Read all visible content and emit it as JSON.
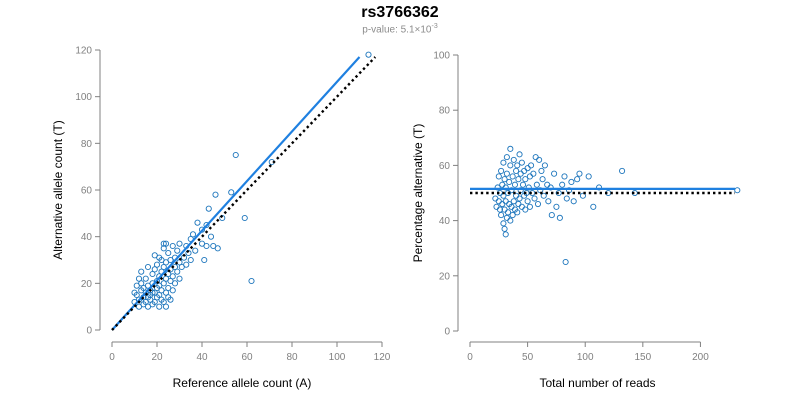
{
  "title": "rs3766362",
  "subtitle": {
    "prefix": "p-value: 5.1×10",
    "exponent": "-3"
  },
  "colors": {
    "points": "#1c75bc",
    "fit_line": "#1f80e0",
    "reference_line": "#000000",
    "axis": "#808080"
  },
  "chart_data": [
    {
      "type": "scatter",
      "xlabel": "Reference allele count (A)",
      "ylabel": "Alternative allele count (T)",
      "xlim": [
        0,
        120
      ],
      "ylim": [
        0,
        120
      ],
      "xticks": [
        0,
        20,
        40,
        60,
        80,
        100,
        120
      ],
      "yticks": [
        0,
        20,
        40,
        60,
        80,
        100,
        120
      ],
      "grid": false,
      "series": [
        {
          "name": "samples",
          "points": [
            [
              10,
              12
            ],
            [
              11,
              15
            ],
            [
              12,
              10
            ],
            [
              12,
              13
            ],
            [
              13,
              17
            ],
            [
              13,
              20
            ],
            [
              14,
              11
            ],
            [
              14,
              14
            ],
            [
              14,
              18
            ],
            [
              15,
              12
            ],
            [
              15,
              16
            ],
            [
              15,
              22
            ],
            [
              16,
              10
            ],
            [
              16,
              14
            ],
            [
              16,
              19
            ],
            [
              17,
              13
            ],
            [
              17,
              15
            ],
            [
              17,
              17
            ],
            [
              18,
              11
            ],
            [
              18,
              20
            ],
            [
              18,
              24
            ],
            [
              19,
              12
            ],
            [
              19,
              16
            ],
            [
              19,
              26
            ],
            [
              20,
              14
            ],
            [
              20,
              18
            ],
            [
              20,
              21
            ],
            [
              20,
              28
            ],
            [
              21,
              10
            ],
            [
              21,
              15
            ],
            [
              21,
              19
            ],
            [
              21,
              23
            ],
            [
              22,
              13
            ],
            [
              22,
              17
            ],
            [
              22,
              25
            ],
            [
              22,
              30
            ],
            [
              23,
              12
            ],
            [
              23,
              20
            ],
            [
              23,
              27
            ],
            [
              23,
              35
            ],
            [
              24,
              16
            ],
            [
              24,
              22
            ],
            [
              24,
              29
            ],
            [
              24,
              37
            ],
            [
              25,
              14
            ],
            [
              25,
              18
            ],
            [
              25,
              24
            ],
            [
              25,
              33
            ],
            [
              26,
              21
            ],
            [
              26,
              26
            ],
            [
              26,
              30
            ],
            [
              27,
              17
            ],
            [
              27,
              23
            ],
            [
              27,
              36
            ],
            [
              28,
              20
            ],
            [
              28,
              27
            ],
            [
              28,
              31
            ],
            [
              29,
              25
            ],
            [
              29,
              34
            ],
            [
              30,
              22
            ],
            [
              30,
              29
            ],
            [
              30,
              37
            ],
            [
              31,
              27
            ],
            [
              32,
              31
            ],
            [
              33,
              28
            ],
            [
              33,
              36
            ],
            [
              34,
              33
            ],
            [
              35,
              30
            ],
            [
              35,
              39
            ],
            [
              36,
              41
            ],
            [
              37,
              34
            ],
            [
              38,
              46
            ],
            [
              40,
              37
            ],
            [
              40,
              43
            ],
            [
              41,
              30
            ],
            [
              42,
              45
            ],
            [
              42,
              36
            ],
            [
              43,
              52
            ],
            [
              44,
              40
            ],
            [
              45,
              36
            ],
            [
              46,
              58
            ],
            [
              47,
              35
            ],
            [
              49,
              48
            ],
            [
              53,
              59
            ],
            [
              55,
              75
            ],
            [
              59,
              48
            ],
            [
              62,
              21
            ],
            [
              71,
              72
            ],
            [
              114,
              118
            ],
            [
              11,
              19
            ],
            [
              12,
              22
            ],
            [
              13,
              25
            ],
            [
              16,
              27
            ],
            [
              18,
              16
            ],
            [
              19,
              32
            ],
            [
              21,
              31
            ],
            [
              23,
              37
            ],
            [
              24,
              10
            ],
            [
              26,
              13
            ],
            [
              10,
              16
            ]
          ]
        }
      ],
      "lines": [
        {
          "name": "fit",
          "x": [
            0,
            110
          ],
          "y": [
            0,
            117
          ],
          "style": "solid"
        },
        {
          "name": "expected",
          "x": [
            0,
            117
          ],
          "y": [
            0,
            117
          ],
          "style": "dotted"
        }
      ]
    },
    {
      "type": "scatter",
      "xlabel": "Total number of reads",
      "ylabel": "Percentage alternative (T)",
      "xlim": [
        0,
        230
      ],
      "ylim": [
        0,
        100
      ],
      "xticks": [
        0,
        50,
        100,
        150,
        200
      ],
      "yticks": [
        0,
        20,
        40,
        60,
        80,
        100
      ],
      "grid": false,
      "series": [
        {
          "name": "samples",
          "points": [
            [
              22,
              48
            ],
            [
              23,
              45
            ],
            [
              24,
              52
            ],
            [
              25,
              47
            ],
            [
              25,
              56
            ],
            [
              26,
              44
            ],
            [
              26,
              50
            ],
            [
              27,
              42
            ],
            [
              27,
              58
            ],
            [
              28,
              46
            ],
            [
              28,
              53
            ],
            [
              29,
              39
            ],
            [
              29,
              49
            ],
            [
              29,
              61
            ],
            [
              30,
              37
            ],
            [
              30,
              44
            ],
            [
              30,
              55
            ],
            [
              31,
              35
            ],
            [
              31,
              47
            ],
            [
              31,
              52
            ],
            [
              32,
              41
            ],
            [
              32,
              57
            ],
            [
              32,
              63
            ],
            [
              33,
              43
            ],
            [
              33,
              50
            ],
            [
              34,
              46
            ],
            [
              34,
              54
            ],
            [
              35,
              40
            ],
            [
              35,
              60
            ],
            [
              35,
              66
            ],
            [
              36,
              45
            ],
            [
              36,
              51
            ],
            [
              37,
              42
            ],
            [
              37,
              56
            ],
            [
              38,
              47
            ],
            [
              38,
              62
            ],
            [
              39,
              44
            ],
            [
              39,
              53
            ],
            [
              40,
              49
            ],
            [
              40,
              58
            ],
            [
              41,
              43
            ],
            [
              41,
              60
            ],
            [
              42,
              46
            ],
            [
              42,
              55
            ],
            [
              43,
              48
            ],
            [
              43,
              64
            ],
            [
              44,
              51
            ],
            [
              44,
              57
            ],
            [
              45,
              45
            ],
            [
              45,
              61
            ],
            [
              46,
              53
            ],
            [
              47,
              49
            ],
            [
              47,
              58
            ],
            [
              48,
              44
            ],
            [
              48,
              55
            ],
            [
              49,
              50
            ],
            [
              50,
              47
            ],
            [
              50,
              59
            ],
            [
              51,
              52
            ],
            [
              52,
              56
            ],
            [
              52,
              45
            ],
            [
              53,
              60
            ],
            [
              54,
              50
            ],
            [
              55,
              57
            ],
            [
              56,
              48
            ],
            [
              57,
              63
            ],
            [
              58,
              53
            ],
            [
              59,
              46
            ],
            [
              60,
              62
            ],
            [
              61,
              51
            ],
            [
              62,
              58
            ],
            [
              63,
              55
            ],
            [
              64,
              49
            ],
            [
              65,
              60
            ],
            [
              67,
              53
            ],
            [
              68,
              47
            ],
            [
              70,
              52
            ],
            [
              71,
              42
            ],
            [
              73,
              57
            ],
            [
              75,
              45
            ],
            [
              77,
              50
            ],
            [
              78,
              41
            ],
            [
              80,
              53
            ],
            [
              82,
              56
            ],
            [
              83,
              25
            ],
            [
              84,
              48
            ],
            [
              86,
              51
            ],
            [
              88,
              54
            ],
            [
              90,
              47
            ],
            [
              93,
              55
            ],
            [
              95,
              57
            ],
            [
              98,
              49
            ],
            [
              103,
              56
            ],
            [
              107,
              45
            ],
            [
              112,
              52
            ],
            [
              120,
              50
            ],
            [
              132,
              58
            ],
            [
              143,
              50
            ],
            [
              232,
              51
            ]
          ]
        }
      ],
      "lines": [
        {
          "name": "fit",
          "x": [
            0,
            230
          ],
          "y": [
            51.5,
            51.5
          ],
          "style": "solid"
        },
        {
          "name": "expected",
          "x": [
            0,
            230
          ],
          "y": [
            50,
            50
          ],
          "style": "dotted"
        }
      ]
    }
  ]
}
